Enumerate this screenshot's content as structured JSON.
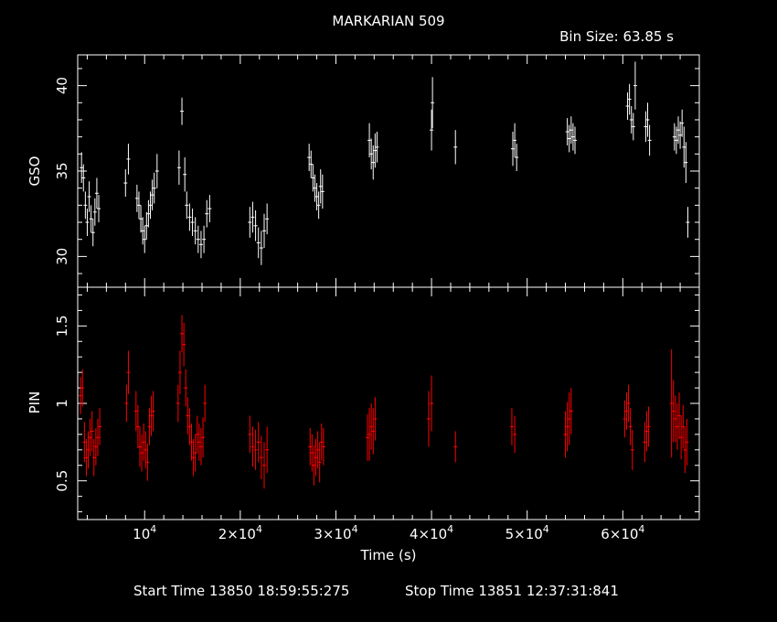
{
  "chart_data": [
    {
      "type": "scatter",
      "title": "MARKARIAN 509",
      "subtitle": "Bin Size: 63.85 s",
      "ylabel": "GSO",
      "xlim": [
        3000,
        68000
      ],
      "ylim": [
        28.2,
        41.8
      ],
      "yticks": [
        30,
        35,
        40
      ],
      "color": "#ffffff",
      "series": [
        {
          "x": [
            3400,
            3600,
            3800,
            4000,
            4200,
            4400,
            4600,
            4800,
            5000,
            5200,
            8000,
            8300,
            9200,
            9400,
            9600,
            9800,
            10000,
            10200,
            10400,
            10600,
            10800,
            11000,
            11300,
            13600,
            13900,
            14200,
            14400,
            14700,
            15000,
            15300,
            15600,
            15900,
            16200,
            16500,
            16800,
            21000,
            21300,
            21600,
            21900,
            22200,
            22500,
            22800,
            27200,
            27400,
            27600,
            27800,
            28000,
            28200,
            28400,
            28600,
            33500,
            33700,
            33900,
            34100,
            34300,
            40000,
            40100,
            42500,
            48500,
            48700,
            48900,
            54200,
            54400,
            54600,
            54800,
            55000,
            60500,
            60700,
            60900,
            61100,
            61300,
            62400,
            62600,
            62800,
            65400,
            65600,
            65800,
            66000,
            66200,
            66400,
            66600,
            66800
          ],
          "y": [
            35.2,
            34.6,
            33.0,
            32.0,
            33.5,
            32.2,
            31.4,
            32.6,
            33.7,
            32.8,
            34.3,
            35.7,
            33.4,
            33.0,
            32.2,
            31.5,
            31.0,
            31.8,
            32.5,
            33.0,
            33.6,
            34.0,
            35.0,
            35.2,
            38.5,
            34.8,
            33.0,
            32.3,
            32.0,
            31.5,
            31.0,
            30.7,
            31.0,
            32.5,
            32.8,
            32.0,
            32.3,
            31.8,
            30.8,
            30.5,
            31.5,
            32.2,
            35.8,
            35.4,
            34.6,
            34.0,
            33.5,
            33.0,
            34.1,
            33.8,
            36.8,
            36.0,
            35.5,
            36.2,
            36.4,
            37.4,
            39.0,
            36.4,
            36.3,
            36.8,
            35.8,
            37.3,
            36.9,
            37.4,
            37.0,
            36.8,
            38.8,
            39.2,
            38.0,
            37.6,
            40.0,
            37.6,
            38.0,
            36.8,
            37.0,
            36.8,
            37.4,
            37.1,
            37.8,
            36.4,
            35.5,
            32.0
          ],
          "err": [
            0.9,
            0.8,
            0.8,
            0.8,
            0.9,
            0.8,
            0.8,
            0.8,
            0.9,
            0.8,
            0.8,
            0.9,
            0.8,
            0.8,
            0.8,
            0.8,
            0.8,
            0.8,
            0.8,
            0.8,
            0.9,
            0.9,
            1.0,
            1.0,
            0.8,
            1.0,
            0.8,
            0.8,
            0.8,
            0.8,
            0.8,
            0.8,
            0.8,
            0.8,
            0.8,
            0.9,
            0.9,
            0.9,
            0.9,
            1.0,
            1.0,
            0.9,
            0.8,
            0.8,
            0.8,
            0.8,
            0.8,
            0.8,
            1.0,
            1.0,
            1.0,
            0.9,
            1.0,
            1.0,
            0.9,
            1.2,
            1.5,
            1.0,
            1.0,
            1.0,
            0.8,
            0.8,
            0.8,
            0.8,
            0.8,
            0.8,
            0.8,
            0.9,
            0.8,
            0.8,
            1.4,
            0.9,
            1.0,
            0.9,
            0.8,
            0.8,
            0.8,
            0.8,
            0.8,
            1.2,
            1.2,
            0.9
          ]
        }
      ]
    },
    {
      "type": "scatter",
      "ylabel": "PIN",
      "xlabel": "Time (s)",
      "xlim": [
        3000,
        68000
      ],
      "ylim": [
        0.25,
        1.75
      ],
      "yticks": [
        0.5,
        1,
        1.5
      ],
      "yticklabels": [
        "0.5",
        "1",
        "1.5"
      ],
      "xticks": [
        10000,
        20000,
        30000,
        40000,
        50000,
        60000
      ],
      "xticklabels": [
        {
          "mant": "",
          "base": "10",
          "exp": "4"
        },
        {
          "mant": "2×",
          "base": "10",
          "exp": "4"
        },
        {
          "mant": "3×",
          "base": "10",
          "exp": "4"
        },
        {
          "mant": "4×",
          "base": "10",
          "exp": "4"
        },
        {
          "mant": "5×",
          "base": "10",
          "exp": "4"
        },
        {
          "mant": "6×",
          "base": "10",
          "exp": "4"
        }
      ],
      "color": "#ff0000",
      "series": [
        {
          "x": [
            3300,
            3500,
            3700,
            3900,
            4100,
            4300,
            4500,
            4700,
            4900,
            5100,
            5300,
            8100,
            8300,
            9100,
            9300,
            9500,
            9700,
            9900,
            10100,
            10300,
            10500,
            10700,
            10900,
            13500,
            13700,
            13900,
            14100,
            14300,
            14500,
            14700,
            14900,
            15100,
            15300,
            15500,
            15700,
            15900,
            16100,
            16300,
            21000,
            21300,
            21600,
            21900,
            22200,
            22500,
            22800,
            27300,
            27500,
            27700,
            27900,
            28100,
            28300,
            28500,
            28700,
            33300,
            33500,
            33700,
            33900,
            34100,
            39700,
            40000,
            42500,
            48400,
            48700,
            54000,
            54200,
            54400,
            54600,
            60200,
            60400,
            60600,
            60800,
            61000,
            62300,
            62500,
            62700,
            65100,
            65300,
            65500,
            65700,
            65900,
            66100,
            66300,
            66500,
            66700
          ],
          "y": [
            1.05,
            1.1,
            0.75,
            0.65,
            0.7,
            0.78,
            0.82,
            0.65,
            0.72,
            0.78,
            0.85,
            1.0,
            1.2,
            0.95,
            0.85,
            0.72,
            0.68,
            0.75,
            0.7,
            0.62,
            0.85,
            0.92,
            0.95,
            1.0,
            1.2,
            1.45,
            1.38,
            1.1,
            0.92,
            0.85,
            0.75,
            0.65,
            0.68,
            0.8,
            0.75,
            0.72,
            0.78,
            1.0,
            0.8,
            0.72,
            0.7,
            0.75,
            0.65,
            0.6,
            0.7,
            0.72,
            0.68,
            0.6,
            0.65,
            0.7,
            0.62,
            0.75,
            0.72,
            0.78,
            0.8,
            0.85,
            0.82,
            0.9,
            0.9,
            1.0,
            0.72,
            0.85,
            0.8,
            0.8,
            0.85,
            0.9,
            0.95,
            0.9,
            0.95,
            1.0,
            0.85,
            0.7,
            0.75,
            0.82,
            0.85,
            1.0,
            0.95,
            0.9,
            0.85,
            0.92,
            0.78,
            0.85,
            0.7,
            0.75
          ],
          "err": [
            0.12,
            0.12,
            0.13,
            0.12,
            0.12,
            0.12,
            0.13,
            0.12,
            0.12,
            0.12,
            0.12,
            0.12,
            0.14,
            0.13,
            0.14,
            0.13,
            0.12,
            0.12,
            0.12,
            0.12,
            0.12,
            0.13,
            0.13,
            0.12,
            0.14,
            0.12,
            0.14,
            0.12,
            0.12,
            0.12,
            0.12,
            0.12,
            0.12,
            0.12,
            0.12,
            0.12,
            0.13,
            0.12,
            0.12,
            0.13,
            0.13,
            0.13,
            0.14,
            0.15,
            0.15,
            0.12,
            0.12,
            0.13,
            0.12,
            0.12,
            0.13,
            0.12,
            0.12,
            0.15,
            0.17,
            0.15,
            0.15,
            0.14,
            0.18,
            0.18,
            0.1,
            0.12,
            0.12,
            0.15,
            0.16,
            0.17,
            0.15,
            0.12,
            0.12,
            0.12,
            0.12,
            0.13,
            0.13,
            0.13,
            0.13,
            0.35,
            0.2,
            0.15,
            0.15,
            0.15,
            0.14,
            0.14,
            0.15,
            0.15
          ]
        }
      ]
    }
  ],
  "footer": {
    "start_time": "Start Time 13850 18:59:55:275",
    "stop_time": "Stop Time 13851 12:37:31:841"
  }
}
